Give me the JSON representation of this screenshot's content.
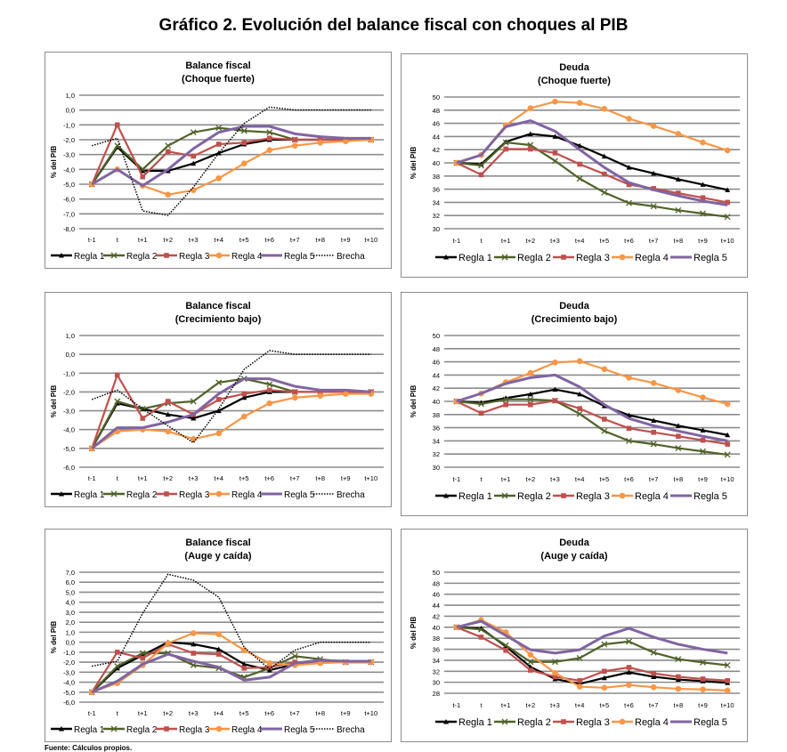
{
  "title": "Gráfico 2. Evolución del balance fiscal con choques al PIB",
  "source": "Fuente: Cálculos propios.",
  "series_styles": {
    "Regla 1": {
      "color": "#000000",
      "marker": "triangle"
    },
    "Regla 2": {
      "color": "#4f6228",
      "marker": "x"
    },
    "Regla 3": {
      "color": "#c0504d",
      "marker": "square"
    },
    "Regla 4": {
      "color": "#f79646",
      "marker": "circle"
    },
    "Regla 5": {
      "color": "#8064a2",
      "marker": "none"
    },
    "Brecha": {
      "color": "#000000",
      "marker": "none",
      "dash": "dotted"
    }
  },
  "chart_data": [
    {
      "type": "line",
      "title": "Balance fiscal",
      "subtitle": "(Choque fuerte)",
      "ylabel": "% del PIB",
      "ylim": [
        -8,
        1
      ],
      "yticks": [
        1,
        0,
        -1,
        -2,
        -3,
        -4,
        -5,
        -6,
        -7,
        -8
      ],
      "ytick_labels": [
        "1,0",
        "0,0",
        "-1,0",
        "-2,0",
        "-3,0",
        "-4,0",
        "-5,0",
        "-6,0",
        "-7,0",
        "-8,0"
      ],
      "categories": [
        "t-1",
        "t",
        "t+1",
        "t+2",
        "t+3",
        "t+4",
        "t+5",
        "t+6",
        "t+7",
        "t+8",
        "t+9",
        "t+10"
      ],
      "grid": true,
      "legend": "bottom",
      "series": [
        {
          "name": "Regla 1",
          "values": [
            -5,
            -2.5,
            -4.1,
            -4.1,
            -3.6,
            -2.9,
            -2.3,
            -2.0,
            -2.0,
            -2.0,
            -2.0,
            -2.0
          ]
        },
        {
          "name": "Regla 2",
          "values": [
            -5,
            -2.4,
            -4.0,
            -2.4,
            -1.5,
            -1.2,
            -1.4,
            -1.5,
            -2.0,
            -2.0,
            -2.0,
            -2.0
          ]
        },
        {
          "name": "Regla 3",
          "values": [
            -5,
            -1.0,
            -4.5,
            -2.8,
            -3.1,
            -2.3,
            -2.2,
            -1.9,
            -2.0,
            -2.0,
            -2.0,
            -2.0
          ]
        },
        {
          "name": "Regla 4",
          "values": [
            -5,
            -4.0,
            -5.1,
            -5.7,
            -5.4,
            -4.6,
            -3.6,
            -2.7,
            -2.4,
            -2.2,
            -2.1,
            -2.0
          ]
        },
        {
          "name": "Regla 5",
          "values": [
            -5,
            -4.0,
            -5.1,
            -4.0,
            -2.6,
            -1.5,
            -1.1,
            -1.1,
            -1.6,
            -1.8,
            -1.9,
            -1.9
          ]
        },
        {
          "name": "Brecha",
          "values": [
            -2.4,
            -1.9,
            -6.8,
            -7.1,
            -5.2,
            -2.9,
            -0.9,
            0.2,
            0,
            0,
            0,
            0
          ]
        }
      ]
    },
    {
      "type": "line",
      "title": "Deuda",
      "subtitle": "(Choque fuerte)",
      "ylabel": "% del PIB",
      "ylim": [
        30,
        50
      ],
      "yticks": [
        50,
        48,
        46,
        44,
        42,
        40,
        38,
        36,
        34,
        32,
        30
      ],
      "ytick_labels": [
        "50",
        "48",
        "46",
        "44",
        "42",
        "40",
        "38",
        "36",
        "34",
        "32",
        "30"
      ],
      "categories": [
        "t-1",
        "t",
        "t+1",
        "t+2",
        "t+3",
        "t+4",
        "t+5",
        "t+6",
        "t+7",
        "t+8",
        "t+9",
        "t+10"
      ],
      "grid": true,
      "legend": "bottom",
      "series": [
        {
          "name": "Regla 1",
          "values": [
            40,
            39.8,
            43.2,
            44.4,
            44.0,
            42.6,
            41.0,
            39.3,
            38.4,
            37.5,
            36.7,
            35.9
          ]
        },
        {
          "name": "Regla 2",
          "values": [
            40,
            39.6,
            43.1,
            42.7,
            40.3,
            37.6,
            35.5,
            33.9,
            33.4,
            32.8,
            32.3,
            31.8
          ]
        },
        {
          "name": "Regla 3",
          "values": [
            40,
            38.2,
            42.1,
            42.1,
            41.5,
            39.8,
            38.3,
            36.7,
            36.1,
            35.4,
            34.7,
            34.0
          ]
        },
        {
          "name": "Regla 4",
          "values": [
            40,
            41.2,
            45.7,
            48.3,
            49.3,
            49.1,
            48.2,
            46.7,
            45.6,
            44.4,
            43.1,
            41.9
          ]
        },
        {
          "name": "Regla 5",
          "values": [
            40,
            41.2,
            45.5,
            46.4,
            44.8,
            42.0,
            39.3,
            37.0,
            35.9,
            35.0,
            34.2,
            33.6
          ]
        }
      ]
    },
    {
      "type": "line",
      "title": "Balance fiscal",
      "subtitle": "(Crecimiento bajo)",
      "ylabel": "% del PIB",
      "ylim": [
        -6,
        1
      ],
      "yticks": [
        1,
        0,
        -1,
        -2,
        -3,
        -4,
        -5,
        -6
      ],
      "ytick_labels": [
        "1,0",
        "0,0",
        "-1,0",
        "-2,0",
        "-3,0",
        "-4,0",
        "-5,0",
        "-6,0"
      ],
      "categories": [
        "t-1",
        "t",
        "t+1",
        "t+2",
        "t+3",
        "t+4",
        "t+5",
        "t+6",
        "t+7",
        "t+8",
        "t+9",
        "t+10"
      ],
      "grid": true,
      "legend": "bottom",
      "series": [
        {
          "name": "Regla 1",
          "values": [
            -5,
            -2.6,
            -2.9,
            -3.2,
            -3.4,
            -3.0,
            -2.3,
            -2.0,
            -2.0,
            -2.0,
            -2.0,
            -2.0
          ]
        },
        {
          "name": "Regla 2",
          "values": [
            -5,
            -2.5,
            -2.9,
            -2.6,
            -2.5,
            -1.5,
            -1.3,
            -1.6,
            -2.0,
            -2.0,
            -2.0,
            -2.0
          ]
        },
        {
          "name": "Regla 3",
          "values": [
            -5,
            -1.1,
            -3.4,
            -2.5,
            -3.2,
            -2.4,
            -2.1,
            -1.9,
            -2.0,
            -2.0,
            -2.0,
            -2.0
          ]
        },
        {
          "name": "Regla 4",
          "values": [
            -5,
            -4.1,
            -4.0,
            -4.1,
            -4.5,
            -4.2,
            -3.3,
            -2.6,
            -2.3,
            -2.2,
            -2.1,
            -2.1
          ]
        },
        {
          "name": "Regla 5",
          "values": [
            -5,
            -3.9,
            -3.9,
            -3.6,
            -3.2,
            -2.1,
            -1.3,
            -1.3,
            -1.7,
            -1.9,
            -1.9,
            -2.0
          ]
        },
        {
          "name": "Brecha",
          "values": [
            -2.4,
            -1.9,
            -2.9,
            -3.8,
            -4.7,
            -2.9,
            -0.8,
            0.2,
            0,
            0,
            0,
            0
          ]
        }
      ]
    },
    {
      "type": "line",
      "title": "Deuda",
      "subtitle": "(Crecimiento bajo)",
      "ylabel": "% del PIB",
      "ylim": [
        30,
        50
      ],
      "yticks": [
        50,
        48,
        46,
        44,
        42,
        40,
        38,
        36,
        34,
        32,
        30
      ],
      "ytick_labels": [
        "50",
        "48",
        "46",
        "44",
        "42",
        "40",
        "38",
        "36",
        "34",
        "32",
        "30"
      ],
      "categories": [
        "t-1",
        "t",
        "t+1",
        "t+2",
        "t+3",
        "t+4",
        "t+5",
        "t+6",
        "t+7",
        "t+8",
        "t+9",
        "t+10"
      ],
      "grid": true,
      "legend": "bottom",
      "series": [
        {
          "name": "Regla 1",
          "values": [
            40,
            39.8,
            40.5,
            41.1,
            41.8,
            41.1,
            39.3,
            37.9,
            37.1,
            36.3,
            35.6,
            34.9
          ]
        },
        {
          "name": "Regla 2",
          "values": [
            40,
            39.6,
            40.3,
            40.3,
            40.1,
            38.1,
            35.5,
            34.0,
            33.5,
            32.9,
            32.4,
            31.9
          ]
        },
        {
          "name": "Regla 3",
          "values": [
            40,
            38.2,
            39.5,
            39.5,
            40.1,
            38.9,
            37.3,
            35.9,
            35.3,
            34.7,
            34.1,
            33.5
          ]
        },
        {
          "name": "Regla 4",
          "values": [
            40,
            41.2,
            42.9,
            44.3,
            45.9,
            46.1,
            44.9,
            43.6,
            42.8,
            41.7,
            40.6,
            39.6
          ]
        },
        {
          "name": "Regla 5",
          "values": [
            40,
            41.2,
            42.7,
            43.6,
            44.0,
            42.2,
            39.5,
            37.4,
            36.3,
            35.5,
            34.7,
            34.0
          ]
        }
      ]
    },
    {
      "type": "line",
      "title": "Balance fiscal",
      "subtitle": "(Auge y caída)",
      "ylabel": "% del PIB",
      "ylim": [
        -6,
        7
      ],
      "yticks": [
        7,
        6,
        5,
        4,
        3,
        2,
        1,
        0,
        -1,
        -2,
        -3,
        -4,
        -5,
        -6
      ],
      "ytick_labels": [
        "7,0",
        "6,0",
        "5,0",
        "4,0",
        "3,0",
        "2,0",
        "1,0",
        "0,0",
        "-1,0",
        "-2,0",
        "-3,0",
        "-4,0",
        "-5,0",
        "-6,0"
      ],
      "categories": [
        "t-1",
        "t",
        "t+1",
        "t+2",
        "t+3",
        "t+4",
        "t+5",
        "t+6",
        "t+7",
        "t+8",
        "t+9",
        "t+10"
      ],
      "grid": true,
      "legend": "bottom",
      "series": [
        {
          "name": "Regla 1",
          "values": [
            -5,
            -2.6,
            -1.3,
            0.0,
            -0.2,
            -0.7,
            -2.2,
            -2.8,
            -2.2,
            -2.0,
            -2.0,
            -2.0
          ]
        },
        {
          "name": "Regla 2",
          "values": [
            -5,
            -2.4,
            -1.1,
            -1.1,
            -2.3,
            -2.6,
            -3.5,
            -2.6,
            -1.4,
            -1.7,
            -2.0,
            -2.0
          ]
        },
        {
          "name": "Regla 3",
          "values": [
            -5,
            -1.0,
            -1.6,
            -0.2,
            -1.1,
            -1.2,
            -2.6,
            -2.5,
            -2.0,
            -2.0,
            -2.0,
            -2.0
          ]
        },
        {
          "name": "Regla 4",
          "values": [
            -5,
            -4.1,
            -2.3,
            -0.1,
            0.9,
            0.8,
            -0.8,
            -2.1,
            -2.3,
            -2.1,
            -2.0,
            -2.0
          ]
        },
        {
          "name": "Regla 5",
          "values": [
            -5,
            -3.9,
            -2.2,
            -1.2,
            -1.9,
            -2.5,
            -3.8,
            -3.5,
            -2.1,
            -1.8,
            -1.9,
            -1.9
          ]
        },
        {
          "name": "Brecha",
          "values": [
            -2.4,
            -1.9,
            2.9,
            6.8,
            6.2,
            4.5,
            -0.5,
            -2.7,
            -0.8,
            0,
            0,
            0
          ]
        }
      ]
    },
    {
      "type": "line",
      "title": "Deuda",
      "subtitle": "(Auge y caída)",
      "ylabel": "% del PIB",
      "ylim": [
        28,
        50
      ],
      "yticks": [
        50,
        48,
        46,
        44,
        42,
        40,
        38,
        36,
        34,
        32,
        30,
        28
      ],
      "ytick_labels": [
        "50",
        "48",
        "46",
        "44",
        "42",
        "40",
        "38",
        "36",
        "34",
        "32",
        "30",
        "28"
      ],
      "categories": [
        "t-1",
        "t",
        "t+1",
        "t+2",
        "t+3",
        "t+4",
        "t+5",
        "t+6",
        "t+7",
        "t+8",
        "t+9",
        "t+10"
      ],
      "grid": true,
      "legend": "bottom",
      "series": [
        {
          "name": "Regla 1",
          "values": [
            40,
            39.8,
            36.5,
            32.8,
            30.6,
            29.7,
            30.8,
            31.8,
            31.0,
            30.5,
            30.2,
            29.9
          ]
        },
        {
          "name": "Regla 2",
          "values": [
            40,
            39.6,
            36.7,
            33.7,
            33.7,
            34.4,
            36.9,
            37.4,
            35.4,
            34.2,
            33.6,
            33.1
          ]
        },
        {
          "name": "Regla 3",
          "values": [
            40,
            38.2,
            35.8,
            32.2,
            31.0,
            30.3,
            32.0,
            32.7,
            31.6,
            31.0,
            30.6,
            30.3
          ]
        },
        {
          "name": "Regla 4",
          "values": [
            40,
            41.3,
            39.1,
            35.0,
            31.7,
            29.2,
            29.0,
            29.5,
            29.1,
            28.8,
            28.7,
            28.5
          ]
        },
        {
          "name": "Regla 5",
          "values": [
            40,
            41.1,
            38.5,
            35.9,
            35.3,
            35.9,
            38.4,
            39.8,
            38.2,
            36.9,
            36.0,
            35.3
          ]
        }
      ]
    }
  ]
}
